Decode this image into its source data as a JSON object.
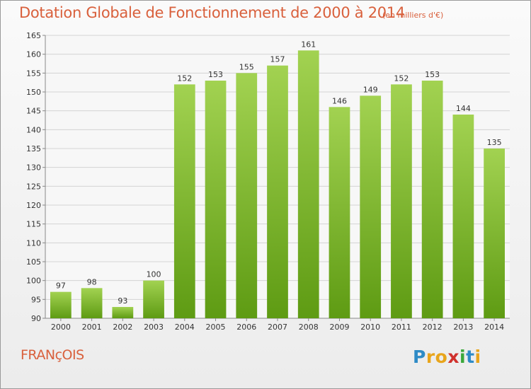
{
  "chart_data": {
    "type": "bar",
    "title": "Dotation Globale de Fonctionnement de 2000 à 2014",
    "subtitle": "(en milliers d'€)",
    "categories": [
      "2000",
      "2001",
      "2002",
      "2003",
      "2004",
      "2005",
      "2006",
      "2007",
      "2008",
      "2009",
      "2010",
      "2011",
      "2012",
      "2013",
      "2014"
    ],
    "values": [
      97,
      98,
      93,
      100,
      152,
      153,
      155,
      157,
      161,
      146,
      149,
      152,
      153,
      144,
      135
    ],
    "ylim": [
      90,
      165
    ],
    "yticks": [
      90,
      95,
      100,
      105,
      110,
      115,
      120,
      125,
      130,
      135,
      140,
      145,
      150,
      155,
      160,
      165
    ],
    "xlabel": "",
    "ylabel": "",
    "grid": true,
    "legend": "none",
    "bar_color_top": "#a2d251",
    "bar_color_bottom": "#5e9b13",
    "grid_color": "#d4d4d4"
  },
  "footer": {
    "commune": "FRANçOIS",
    "logo_letters": [
      {
        "ch": "P",
        "color": "#2e8bc6"
      },
      {
        "ch": "r",
        "color": "#e8a51b"
      },
      {
        "ch": "o",
        "color": "#e8a51b"
      },
      {
        "ch": "x",
        "color": "#d0312d"
      },
      {
        "ch": "i",
        "color": "#3aa83a"
      },
      {
        "ch": "t",
        "color": "#2e8bc6"
      },
      {
        "ch": "i",
        "color": "#e8a51b"
      }
    ]
  }
}
